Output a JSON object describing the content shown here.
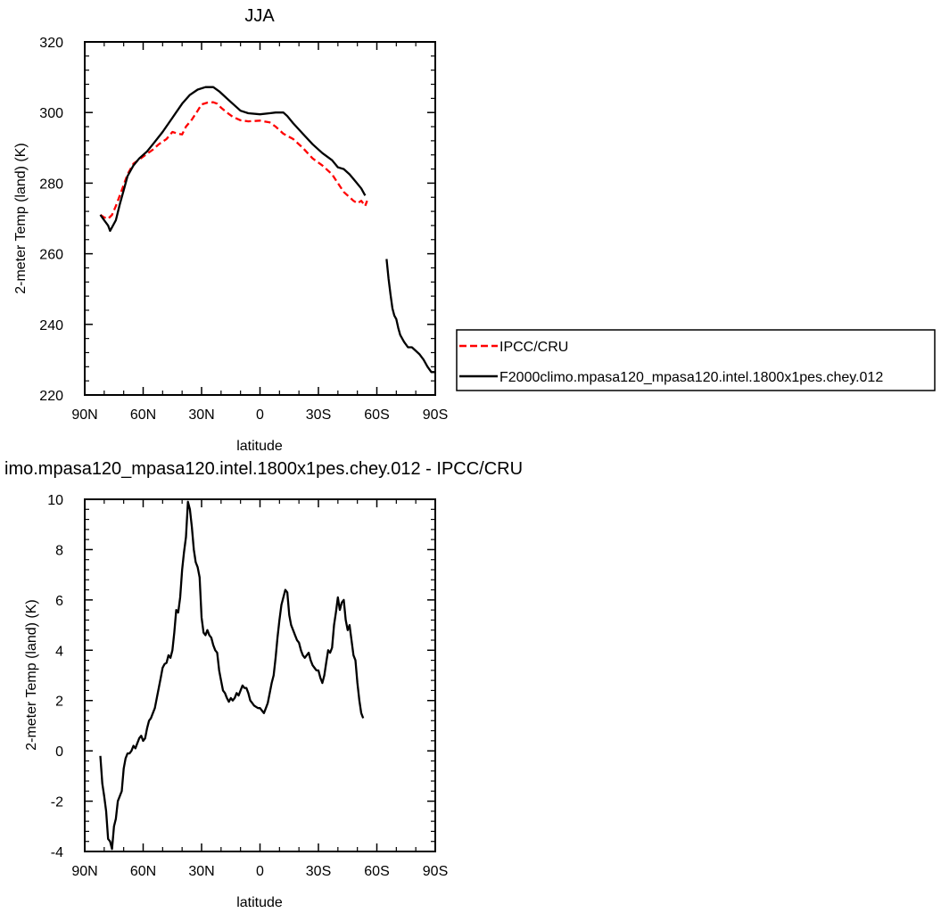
{
  "chart_data": [
    {
      "type": "line",
      "title": "JJA",
      "xlabel": "latitude",
      "ylabel": "2-meter Temp (land) (K)",
      "xlim": [
        90,
        -90
      ],
      "ylim": [
        220,
        320
      ],
      "xticks": [
        {
          "v": 90,
          "label": "90N"
        },
        {
          "v": 60,
          "label": "60N"
        },
        {
          "v": 30,
          "label": "30N"
        },
        {
          "v": 0,
          "label": "0"
        },
        {
          "v": -30,
          "label": "30S"
        },
        {
          "v": -60,
          "label": "60S"
        },
        {
          "v": -90,
          "label": "90S"
        }
      ],
      "yticks": [
        220,
        240,
        260,
        280,
        300,
        320
      ],
      "legend_position": "right",
      "series": [
        {
          "name": "IPCC/CRU",
          "color": "#ff0000",
          "dash": "dashed",
          "points": [
            [
              82,
              271
            ],
            [
              80,
              270.3
            ],
            [
              78,
              269.9
            ],
            [
              76,
              271
            ],
            [
              74,
              273.5
            ],
            [
              72,
              276.5
            ],
            [
              70,
              279.5
            ],
            [
              68,
              282.5
            ],
            [
              65,
              285.5
            ],
            [
              60,
              287.5
            ],
            [
              55,
              289.5
            ],
            [
              52,
              291
            ],
            [
              48,
              292.5
            ],
            [
              45,
              294.5
            ],
            [
              42,
              294
            ],
            [
              40,
              293.8
            ],
            [
              38,
              296
            ],
            [
              35,
              298
            ],
            [
              32,
              300.5
            ],
            [
              30,
              302.3
            ],
            [
              27,
              302.8
            ],
            [
              24,
              302.9
            ],
            [
              22,
              302.5
            ],
            [
              20,
              301.4
            ],
            [
              17,
              300
            ],
            [
              14,
              298.8
            ],
            [
              10,
              297.8
            ],
            [
              6,
              297.5
            ],
            [
              0,
              297.7
            ],
            [
              -5,
              297.2
            ],
            [
              -8,
              296
            ],
            [
              -12,
              294
            ],
            [
              -17,
              292.5
            ],
            [
              -22,
              290
            ],
            [
              -27,
              287
            ],
            [
              -32,
              285
            ],
            [
              -37,
              282.5
            ],
            [
              -40,
              280
            ],
            [
              -43,
              277.5
            ],
            [
              -46,
              276
            ],
            [
              -48,
              275
            ],
            [
              -50,
              274.3
            ],
            [
              -52,
              275
            ],
            [
              -54,
              273.5
            ],
            [
              -55,
              275
            ]
          ]
        },
        {
          "name": "F2000climo.mpasa120_mpasa120.intel.1800x1pes.chey.012",
          "color": "#000000",
          "dash": "solid",
          "segments": [
            [
              [
                82,
                271
              ],
              [
                80,
                269.5
              ],
              [
                78,
                268
              ],
              [
                77,
                266.5
              ],
              [
                76,
                267.5
              ],
              [
                74,
                269.5
              ],
              [
                72,
                274
              ],
              [
                70,
                278
              ],
              [
                68,
                282
              ],
              [
                65,
                285
              ],
              [
                62,
                287
              ],
              [
                58,
                289
              ],
              [
                55,
                291
              ],
              [
                50,
                294.5
              ],
              [
                45,
                298.5
              ],
              [
                40,
                302.5
              ],
              [
                36,
                305
              ],
              [
                32,
                306.5
              ],
              [
                28,
                307.2
              ],
              [
                24,
                307.2
              ],
              [
                21,
                306
              ],
              [
                18,
                304.5
              ],
              [
                14,
                302.5
              ],
              [
                10,
                300.5
              ],
              [
                6,
                299.8
              ],
              [
                0,
                299.5
              ],
              [
                -5,
                299.8
              ],
              [
                -8,
                300
              ],
              [
                -12,
                300
              ],
              [
                -14,
                299
              ],
              [
                -17,
                297
              ],
              [
                -22,
                294
              ],
              [
                -27,
                291
              ],
              [
                -32,
                288.5
              ],
              [
                -37,
                286.5
              ],
              [
                -40,
                284.5
              ],
              [
                -43,
                284
              ],
              [
                -46,
                282.5
              ],
              [
                -49,
                280.5
              ],
              [
                -52,
                278.5
              ],
              [
                -54,
                276.5
              ]
            ],
            [
              [
                -65,
                258.5
              ],
              [
                -66,
                253
              ],
              [
                -67,
                248.5
              ],
              [
                -68,
                244.5
              ],
              [
                -69,
                242.5
              ],
              [
                -70,
                241.5
              ],
              [
                -71,
                239
              ],
              [
                -72,
                237
              ],
              [
                -74,
                235
              ],
              [
                -76,
                233.5
              ],
              [
                -78,
                233.5
              ],
              [
                -80,
                232.5
              ],
              [
                -82,
                231.5
              ],
              [
                -84,
                230
              ],
              [
                -86,
                228
              ],
              [
                -88,
                226.5
              ],
              [
                -90,
                226.5
              ]
            ]
          ]
        }
      ]
    },
    {
      "type": "line",
      "title": "imo.mpasa120_mpasa120.intel.1800x1pes.chey.012 - IPCC/CRU",
      "xlabel": "latitude",
      "ylabel": "2-meter Temp (land) (K)",
      "xlim": [
        90,
        -90
      ],
      "ylim": [
        -4,
        10
      ],
      "xticks": [
        {
          "v": 90,
          "label": "90N"
        },
        {
          "v": 60,
          "label": "60N"
        },
        {
          "v": 30,
          "label": "30N"
        },
        {
          "v": 0,
          "label": "0"
        },
        {
          "v": -30,
          "label": "30S"
        },
        {
          "v": -60,
          "label": "60S"
        },
        {
          "v": -90,
          "label": "90S"
        }
      ],
      "yticks": [
        -4,
        -2,
        0,
        2,
        4,
        6,
        8,
        10
      ],
      "series": [
        {
          "color": "#000000",
          "dash": "solid",
          "points": [
            [
              82,
              -0.2
            ],
            [
              81,
              -1.3
            ],
            [
              80,
              -1.8
            ],
            [
              79,
              -2.4
            ],
            [
              78,
              -3.5
            ],
            [
              77,
              -3.6
            ],
            [
              76,
              -3.9
            ],
            [
              75,
              -3
            ],
            [
              74,
              -2.7
            ],
            [
              73,
              -2
            ],
            [
              72,
              -1.8
            ],
            [
              71,
              -1.6
            ],
            [
              70,
              -0.7
            ],
            [
              69,
              -0.3
            ],
            [
              68,
              -0.1
            ],
            [
              67,
              -0.1
            ],
            [
              66,
              0
            ],
            [
              65,
              0.2
            ],
            [
              64,
              0.1
            ],
            [
              63,
              0.3
            ],
            [
              62,
              0.5
            ],
            [
              61,
              0.6
            ],
            [
              60,
              0.4
            ],
            [
              59,
              0.5
            ],
            [
              58,
              0.9
            ],
            [
              57,
              1.2
            ],
            [
              56,
              1.3
            ],
            [
              55,
              1.5
            ],
            [
              54,
              1.7
            ],
            [
              53,
              2.1
            ],
            [
              52,
              2.5
            ],
            [
              51,
              2.9
            ],
            [
              50,
              3.3
            ],
            [
              49,
              3.45
            ],
            [
              48,
              3.5
            ],
            [
              47,
              3.8
            ],
            [
              46,
              3.7
            ],
            [
              45,
              4
            ],
            [
              44,
              4.7
            ],
            [
              43,
              5.6
            ],
            [
              42,
              5.5
            ],
            [
              41,
              6.1
            ],
            [
              40,
              7.2
            ],
            [
              39,
              7.9
            ],
            [
              38,
              8.5
            ],
            [
              37,
              9.9
            ],
            [
              36,
              9.6
            ],
            [
              35,
              8.9
            ],
            [
              34,
              8
            ],
            [
              33,
              7.5
            ],
            [
              32,
              7.3
            ],
            [
              31,
              6.9
            ],
            [
              30,
              5.3
            ],
            [
              29,
              4.7
            ],
            [
              28,
              4.6
            ],
            [
              27,
              4.8
            ],
            [
              26,
              4.6
            ],
            [
              25,
              4.5
            ],
            [
              24,
              4.2
            ],
            [
              23,
              4
            ],
            [
              22,
              3.9
            ],
            [
              21,
              3.2
            ],
            [
              20,
              2.8
            ],
            [
              19,
              2.4
            ],
            [
              18,
              2.3
            ],
            [
              17,
              2.1
            ],
            [
              16,
              1.95
            ],
            [
              15,
              2.1
            ],
            [
              14,
              2
            ],
            [
              13,
              2.1
            ],
            [
              12,
              2.3
            ],
            [
              11,
              2.2
            ],
            [
              10,
              2.4
            ],
            [
              9,
              2.6
            ],
            [
              8,
              2.5
            ],
            [
              7,
              2.5
            ],
            [
              6,
              2.3
            ],
            [
              5,
              2
            ],
            [
              4,
              1.9
            ],
            [
              3,
              1.8
            ],
            [
              2,
              1.75
            ],
            [
              1,
              1.7
            ],
            [
              0,
              1.7
            ],
            [
              -1,
              1.6
            ],
            [
              -2,
              1.5
            ],
            [
              -3,
              1.7
            ],
            [
              -4,
              1.9
            ],
            [
              -5,
              2.3
            ],
            [
              -6,
              2.7
            ],
            [
              -7,
              3
            ],
            [
              -8,
              3.7
            ],
            [
              -9,
              4.5
            ],
            [
              -10,
              5.2
            ],
            [
              -11,
              5.8
            ],
            [
              -12,
              6.1
            ],
            [
              -13,
              6.4
            ],
            [
              -14,
              6.3
            ],
            [
              -15,
              5.4
            ],
            [
              -16,
              5
            ],
            [
              -17,
              4.8
            ],
            [
              -18,
              4.6
            ],
            [
              -19,
              4.4
            ],
            [
              -20,
              4.3
            ],
            [
              -21,
              4
            ],
            [
              -22,
              3.8
            ],
            [
              -23,
              3.7
            ],
            [
              -24,
              3.8
            ],
            [
              -25,
              3.9
            ],
            [
              -26,
              3.6
            ],
            [
              -27,
              3.4
            ],
            [
              -28,
              3.3
            ],
            [
              -29,
              3.2
            ],
            [
              -30,
              3.2
            ],
            [
              -31,
              2.9
            ],
            [
              -32,
              2.7
            ],
            [
              -33,
              3
            ],
            [
              -34,
              3.5
            ],
            [
              -35,
              4
            ],
            [
              -36,
              3.9
            ],
            [
              -37,
              4.1
            ],
            [
              -38,
              5
            ],
            [
              -39,
              5.5
            ],
            [
              -40,
              6.1
            ],
            [
              -41,
              5.6
            ],
            [
              -42,
              5.9
            ],
            [
              -43,
              6
            ],
            [
              -44,
              5.2
            ],
            [
              -45,
              4.8
            ],
            [
              -46,
              5
            ],
            [
              -47,
              4.4
            ],
            [
              -48,
              3.8
            ],
            [
              -49,
              3.6
            ],
            [
              -50,
              2.7
            ],
            [
              -51,
              2
            ],
            [
              -52,
              1.5
            ],
            [
              -53,
              1.3
            ]
          ]
        }
      ]
    }
  ]
}
